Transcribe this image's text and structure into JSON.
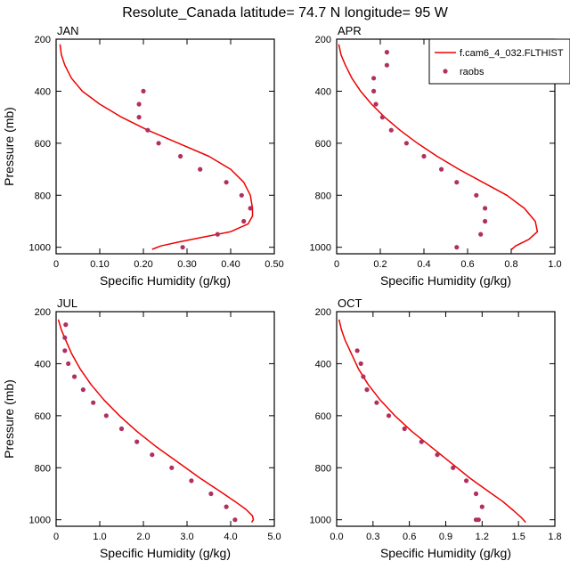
{
  "figure_title": "Resolute_Canada  latitude= 74.7 N longitude= 95 W",
  "legend": {
    "model_label": "f.cam6_4_032.FLTHIST",
    "obs_label": "raobs",
    "model_color": "#ee0000",
    "obs_color": "#b03060"
  },
  "chart_data": [
    {
      "type": "line",
      "panel": "JAN",
      "title": "JAN",
      "xlabel": "Specific Humidity (g/kg)",
      "ylabel": "Pressure (mb)",
      "xlim": [
        0,
        0.5
      ],
      "ylim": [
        200,
        1025
      ],
      "y_inverted": true,
      "xticks": [
        "0",
        "0.10",
        "0.20",
        "0.30",
        "0.40",
        "0.50"
      ],
      "xtick_values": [
        0,
        0.1,
        0.2,
        0.3,
        0.4,
        0.5
      ],
      "yticks": [
        200,
        400,
        600,
        800,
        1000
      ],
      "series": [
        {
          "name": "f.cam6_4_032.FLTHIST",
          "kind": "line",
          "x": [
            0.009,
            0.012,
            0.02,
            0.035,
            0.06,
            0.1,
            0.15,
            0.21,
            0.28,
            0.35,
            0.4,
            0.43,
            0.445,
            0.45,
            0.45,
            0.44,
            0.4,
            0.34,
            0.28,
            0.24,
            0.22
          ],
          "y": [
            220,
            260,
            300,
            350,
            400,
            450,
            500,
            550,
            600,
            650,
            700,
            750,
            800,
            850,
            880,
            910,
            940,
            960,
            980,
            995,
            1008
          ]
        },
        {
          "name": "raobs",
          "kind": "scatter",
          "x": [
            0.2,
            0.19,
            0.19,
            0.21,
            0.235,
            0.285,
            0.33,
            0.39,
            0.425,
            0.445,
            0.43,
            0.37,
            0.29
          ],
          "y": [
            400,
            450,
            500,
            550,
            600,
            650,
            700,
            750,
            800,
            850,
            900,
            950,
            1000
          ]
        }
      ]
    },
    {
      "type": "line",
      "panel": "APR",
      "title": "APR",
      "xlabel": "Specific Humidity (g/kg)",
      "ylabel": "",
      "xlim": [
        0,
        1.0
      ],
      "ylim": [
        200,
        1025
      ],
      "y_inverted": true,
      "xticks": [
        "0",
        "0.2",
        "0.4",
        "0.6",
        "0.8",
        "1.0"
      ],
      "xtick_values": [
        0,
        0.2,
        0.4,
        0.6,
        0.8,
        1.0
      ],
      "yticks": [
        200,
        400,
        600,
        800,
        1000
      ],
      "series": [
        {
          "name": "f.cam6_4_032.FLTHIST",
          "kind": "line",
          "x": [
            0.01,
            0.02,
            0.04,
            0.07,
            0.11,
            0.16,
            0.22,
            0.29,
            0.37,
            0.46,
            0.56,
            0.67,
            0.78,
            0.86,
            0.91,
            0.92,
            0.88,
            0.82,
            0.8
          ],
          "y": [
            220,
            260,
            300,
            350,
            400,
            450,
            500,
            550,
            600,
            650,
            700,
            750,
            800,
            850,
            900,
            940,
            970,
            995,
            1010
          ]
        },
        {
          "name": "raobs",
          "kind": "scatter",
          "x": [
            0.23,
            0.23,
            0.17,
            0.17,
            0.18,
            0.21,
            0.25,
            0.32,
            0.4,
            0.48,
            0.55,
            0.64,
            0.68,
            0.68,
            0.66,
            0.55
          ],
          "y": [
            250,
            300,
            350,
            400,
            450,
            500,
            550,
            600,
            650,
            700,
            750,
            800,
            850,
            900,
            950,
            1000
          ]
        }
      ]
    },
    {
      "type": "line",
      "panel": "JUL",
      "title": "JUL",
      "xlabel": "Specific Humidity (g/kg)",
      "ylabel": "Pressure (mb)",
      "xlim": [
        0,
        5.0
      ],
      "ylim": [
        200,
        1025
      ],
      "y_inverted": true,
      "xticks": [
        "0",
        "1.0",
        "2.0",
        "3.0",
        "4.0",
        "5.0"
      ],
      "xtick_values": [
        0,
        1,
        2,
        3,
        4,
        5
      ],
      "yticks": [
        200,
        400,
        600,
        800,
        1000
      ],
      "series": [
        {
          "name": "f.cam6_4_032.FLTHIST",
          "kind": "line",
          "x": [
            0.05,
            0.12,
            0.22,
            0.35,
            0.55,
            0.8,
            1.1,
            1.45,
            1.85,
            2.3,
            2.8,
            3.3,
            3.75,
            4.1,
            4.35,
            4.5,
            4.52,
            4.48
          ],
          "y": [
            230,
            270,
            310,
            360,
            420,
            480,
            540,
            600,
            660,
            720,
            780,
            840,
            890,
            930,
            960,
            985,
            1000,
            1010
          ]
        },
        {
          "name": "raobs",
          "kind": "scatter",
          "x": [
            0.22,
            0.2,
            0.2,
            0.28,
            0.42,
            0.62,
            0.85,
            1.15,
            1.5,
            1.85,
            2.2,
            2.65,
            3.1,
            3.55,
            3.9,
            4.1
          ],
          "y": [
            250,
            300,
            350,
            400,
            450,
            500,
            550,
            600,
            650,
            700,
            750,
            800,
            850,
            900,
            950,
            1000
          ]
        }
      ]
    },
    {
      "type": "line",
      "panel": "OCT",
      "title": "OCT",
      "xlabel": "Specific Humidity (g/kg)",
      "ylabel": "",
      "xlim": [
        0,
        1.8
      ],
      "ylim": [
        200,
        1025
      ],
      "y_inverted": true,
      "xticks": [
        "0.0",
        "0.3",
        "0.6",
        "0.9",
        "1.2",
        "1.5",
        "1.8"
      ],
      "xtick_values": [
        0,
        0.3,
        0.6,
        0.9,
        1.2,
        1.5,
        1.8
      ],
      "yticks": [
        200,
        400,
        600,
        800,
        1000
      ],
      "series": [
        {
          "name": "f.cam6_4_032.FLTHIST",
          "kind": "line",
          "x": [
            0.02,
            0.04,
            0.07,
            0.12,
            0.18,
            0.26,
            0.36,
            0.48,
            0.62,
            0.78,
            0.94,
            1.1,
            1.25,
            1.37,
            1.46,
            1.52,
            1.56
          ],
          "y": [
            230,
            270,
            310,
            360,
            420,
            480,
            540,
            600,
            660,
            720,
            780,
            840,
            890,
            930,
            965,
            990,
            1010
          ]
        },
        {
          "name": "raobs",
          "kind": "scatter",
          "x": [
            0.17,
            0.2,
            0.22,
            0.25,
            0.33,
            0.43,
            0.56,
            0.7,
            0.83,
            0.96,
            1.07,
            1.15,
            1.2,
            1.17,
            1.15
          ],
          "y": [
            350,
            400,
            450,
            500,
            550,
            600,
            650,
            700,
            750,
            800,
            850,
            900,
            950,
            1000,
            1000
          ]
        }
      ]
    }
  ]
}
